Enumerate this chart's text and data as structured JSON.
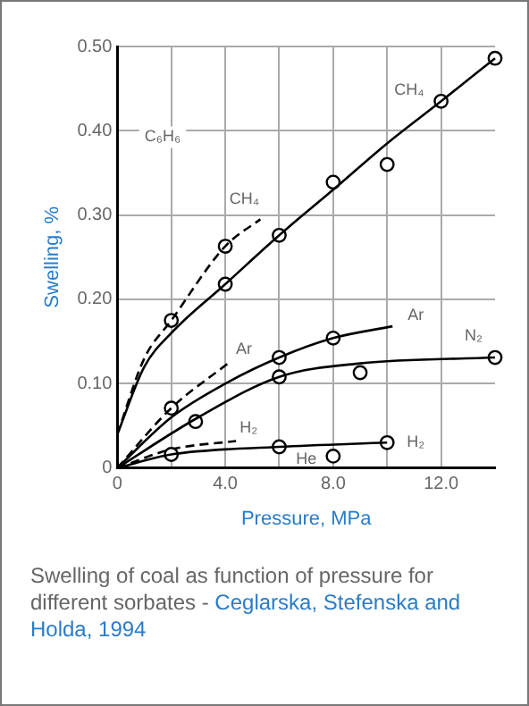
{
  "chart_data": {
    "type": "line",
    "xlabel": "Pressure, MPa",
    "ylabel": "Swelling, %",
    "xlim": [
      0,
      14
    ],
    "ylim": [
      0,
      0.5
    ],
    "xticks": [
      0,
      {
        "value": 2,
        "label": null
      },
      {
        "value": 4,
        "label": "4.0"
      },
      {
        "value": 6,
        "label": null
      },
      {
        "value": 8,
        "label": "8.0"
      },
      {
        "value": 10,
        "label": null
      },
      {
        "value": 12,
        "label": "12.0"
      }
    ],
    "yticks": [
      0,
      {
        "value": 0.1,
        "label": "0.10"
      },
      {
        "value": 0.2,
        "label": "0.20"
      },
      {
        "value": 0.3,
        "label": "0.30"
      },
      {
        "value": 0.4,
        "label": "0.40"
      },
      {
        "value": 0.5,
        "label": "0.50"
      }
    ],
    "grid": true,
    "legend": false,
    "series": [
      {
        "name": "CH₄",
        "color": "#000000",
        "marker": "none",
        "line_style": "solid",
        "x": [
          0,
          1,
          2,
          4,
          6,
          8,
          10,
          12,
          14
        ],
        "values": [
          0.04,
          0.12,
          0.16,
          0.218,
          0.276,
          0.33,
          0.385,
          0.435,
          0.486
        ]
      },
      {
        "type": "scatter",
        "color": "#000000",
        "marker": "circle",
        "x": [
          4,
          6,
          8,
          10,
          12,
          14
        ],
        "values": [
          0.218,
          0.276,
          0.339,
          0.36,
          0.435,
          0.486
        ]
      },
      {
        "name": "CH₄",
        "color": "#000000",
        "marker": "none",
        "line_style": "dashed",
        "x": [
          0,
          1,
          2,
          4,
          5.3
        ],
        "values": [
          0.04,
          0.13,
          0.175,
          0.263,
          0.295
        ]
      },
      {
        "type": "scatter",
        "color": "#000000",
        "marker": "circle",
        "x": [
          2,
          4
        ],
        "values": [
          0.175,
          0.263
        ]
      },
      {
        "name": "Ar",
        "color": "#000000",
        "marker": "none",
        "line_style": "solid",
        "x": [
          0,
          2,
          4,
          6,
          8,
          10.2
        ],
        "values": [
          0,
          0.06,
          0.1,
          0.131,
          0.154,
          0.168
        ]
      },
      {
        "type": "scatter",
        "color": "#000000",
        "marker": "circle",
        "x": [
          6,
          8
        ],
        "values": [
          0.131,
          0.154
        ]
      },
      {
        "name": "Ar",
        "color": "#000000",
        "marker": "none",
        "line_style": "dashed",
        "x": [
          0,
          2,
          4.1
        ],
        "values": [
          0,
          0.071,
          0.124
        ]
      },
      {
        "type": "scatter",
        "color": "#000000",
        "marker": "circle",
        "x": [
          2
        ],
        "values": [
          0.071
        ]
      },
      {
        "name": "N₂",
        "color": "#000000",
        "marker": "none",
        "line_style": "solid",
        "x": [
          0,
          3,
          6,
          9,
          14
        ],
        "values": [
          0,
          0.06,
          0.108,
          0.124,
          0.131
        ]
      },
      {
        "type": "scatter",
        "color": "#000000",
        "marker": "circle",
        "x": [
          2.9,
          6,
          9,
          14
        ],
        "values": [
          0.055,
          0.108,
          0.113,
          0.131
        ]
      },
      {
        "name": "H₂",
        "color": "#000000",
        "marker": "none",
        "line_style": "solid",
        "x": [
          0,
          2,
          6,
          10
        ],
        "values": [
          0,
          0.016,
          0.025,
          0.03
        ]
      },
      {
        "type": "scatter",
        "color": "#000000",
        "marker": "circle",
        "x": [
          2,
          6,
          10
        ],
        "values": [
          0.016,
          0.025,
          0.03
        ]
      },
      {
        "name": "H₂",
        "color": "#000000",
        "marker": "none",
        "line_style": "dashed",
        "x": [
          0,
          2,
          4.4
        ],
        "values": [
          0,
          0.022,
          0.032
        ]
      },
      {
        "type": "scatter",
        "name": "He",
        "color": "#000000",
        "marker": "circle",
        "x": [
          8
        ],
        "values": [
          0.014
        ]
      }
    ],
    "annotations": [
      "C₆H₆",
      "Swelling of coal as function of  pressure for different sorbates -",
      "Ceglarska, Stefenska and Holda, 1994"
    ]
  }
}
